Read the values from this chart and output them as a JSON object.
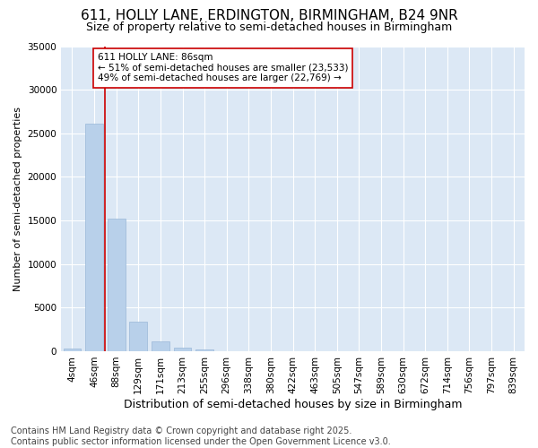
{
  "title": "611, HOLLY LANE, ERDINGTON, BIRMINGHAM, B24 9NR",
  "subtitle": "Size of property relative to semi-detached houses in Birmingham",
  "xlabel": "Distribution of semi-detached houses by size in Birmingham",
  "ylabel": "Number of semi-detached properties",
  "categories": [
    "4sqm",
    "46sqm",
    "88sqm",
    "129sqm",
    "171sqm",
    "213sqm",
    "255sqm",
    "296sqm",
    "338sqm",
    "380sqm",
    "422sqm",
    "463sqm",
    "505sqm",
    "547sqm",
    "589sqm",
    "630sqm",
    "672sqm",
    "714sqm",
    "756sqm",
    "797sqm",
    "839sqm"
  ],
  "values": [
    350,
    26100,
    15200,
    3350,
    1100,
    430,
    150,
    40,
    10,
    5,
    3,
    2,
    1,
    1,
    0,
    0,
    0,
    0,
    0,
    0,
    0
  ],
  "bar_color": "#b8d0ea",
  "bar_edge_color": "#9ab8d8",
  "vline_x_idx": 2,
  "vline_color": "#cc0000",
  "annotation_text": "611 HOLLY LANE: 86sqm\n← 51% of semi-detached houses are smaller (23,533)\n49% of semi-detached houses are larger (22,769) →",
  "annotation_box_facecolor": "#ffffff",
  "annotation_box_edgecolor": "#cc0000",
  "ylim": [
    0,
    35000
  ],
  "yticks": [
    0,
    5000,
    10000,
    15000,
    20000,
    25000,
    30000,
    35000
  ],
  "ytick_labels": [
    "0",
    "5000",
    "10000",
    "15000",
    "20000",
    "25000",
    "30000",
    "35000"
  ],
  "fig_bg_color": "#ffffff",
  "plot_bg_color": "#dce8f5",
  "grid_color": "#ffffff",
  "title_fontsize": 11,
  "subtitle_fontsize": 9,
  "xlabel_fontsize": 9,
  "ylabel_fontsize": 8,
  "tick_fontsize": 7.5,
  "annotation_fontsize": 7.5,
  "footer_fontsize": 7,
  "footer_text": "Contains HM Land Registry data © Crown copyright and database right 2025.\nContains public sector information licensed under the Open Government Licence v3.0."
}
